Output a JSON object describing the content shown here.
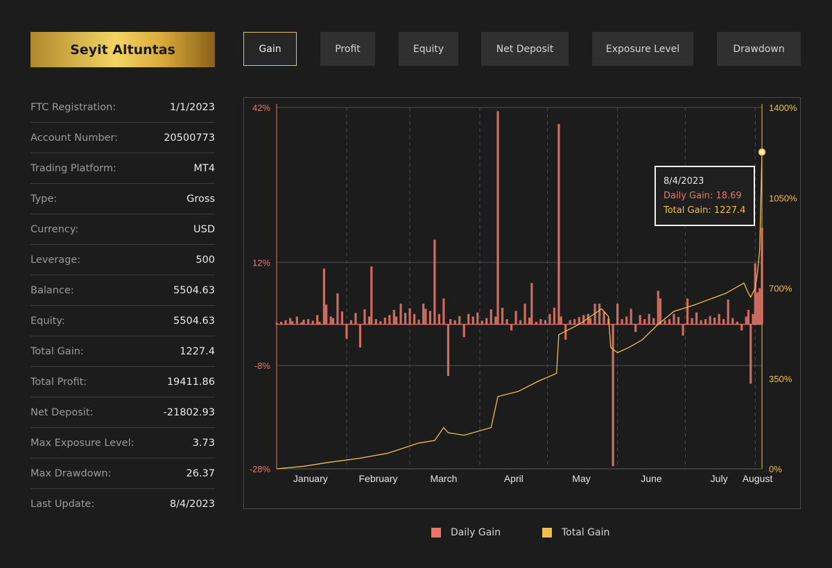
{
  "profile": {
    "name": "Seyit Altuntas"
  },
  "tabs": [
    {
      "label": "Gain",
      "active": true
    },
    {
      "label": "Profit",
      "active": false
    },
    {
      "label": "Equity",
      "active": false
    },
    {
      "label": "Net Deposit",
      "active": false
    },
    {
      "label": "Exposure Level",
      "active": false
    },
    {
      "label": "Drawdown",
      "active": false
    }
  ],
  "info": [
    {
      "label": "FTC Registration:",
      "value": "1/1/2023"
    },
    {
      "label": "Account Number:",
      "value": "20500773"
    },
    {
      "label": "Trading Platform:",
      "value": "MT4"
    },
    {
      "label": "Type:",
      "value": "Gross"
    },
    {
      "label": "Currency:",
      "value": "USD"
    },
    {
      "label": "Leverage:",
      "value": "500"
    },
    {
      "label": "Balance:",
      "value": "5504.63"
    },
    {
      "label": "Equity:",
      "value": "5504.63"
    },
    {
      "label": "Total Gain:",
      "value": "1227.4"
    },
    {
      "label": "Total Profit:",
      "value": "19411.86"
    },
    {
      "label": "Net Deposit:",
      "value": "-21802.93"
    },
    {
      "label": "Max Exposure Level:",
      "value": "3.73"
    },
    {
      "label": "Max Drawdown:",
      "value": "26.37"
    },
    {
      "label": "Last Update:",
      "value": "8/4/2023"
    }
  ],
  "colors": {
    "daily_gain": "#e8776a",
    "total_gain": "#f2bf4c",
    "accent_gold": "#e8c45a"
  },
  "tooltip": {
    "date": "8/4/2023",
    "daily_label": "Daily Gain:",
    "daily_value": "18.69",
    "total_label": "Total Gain:",
    "total_value": "1227.4"
  },
  "legend": [
    {
      "name": "Daily Gain"
    },
    {
      "name": "Total Gain"
    }
  ],
  "chart_data": {
    "type": "bar",
    "x_start": "2023-01-01",
    "x_end": "2023-08-04",
    "x_ticks": [
      "January",
      "February",
      "March",
      "April",
      "May",
      "June",
      "July",
      "August"
    ],
    "y_left": {
      "ticks": [
        "42%",
        "12%",
        "-8%",
        "-28%"
      ],
      "values": [
        42,
        12,
        -8,
        -28
      ],
      "min": -28,
      "max": 42
    },
    "y_right": {
      "ticks": [
        "1400%",
        "1050%",
        "700%",
        "350%",
        "0%"
      ],
      "values": [
        1400,
        1050,
        700,
        350,
        0
      ],
      "min": 0,
      "max": 1400
    },
    "grid": {
      "horizontal": true,
      "vertical_dashed": true
    },
    "legend_position": "bottom-center",
    "series": [
      {
        "name": "Daily Gain",
        "type": "bar",
        "axis": "left",
        "points": [
          [
            "2023-01-01",
            0.3
          ],
          [
            "2023-01-03",
            0.5
          ],
          [
            "2023-01-05",
            0.8
          ],
          [
            "2023-01-07",
            1.2
          ],
          [
            "2023-01-08",
            0.6
          ],
          [
            "2023-01-10",
            1.5
          ],
          [
            "2023-01-12",
            0.4
          ],
          [
            "2023-01-13",
            0.9
          ],
          [
            "2023-01-15",
            1.0
          ],
          [
            "2023-01-17",
            0.7
          ],
          [
            "2023-01-19",
            1.8
          ],
          [
            "2023-01-20",
            0.5
          ],
          [
            "2023-01-22",
            10.8
          ],
          [
            "2023-01-23",
            3.8
          ],
          [
            "2023-01-25",
            1.5
          ],
          [
            "2023-01-26",
            1.2
          ],
          [
            "2023-01-28",
            6.0
          ],
          [
            "2023-01-30",
            2.5
          ],
          [
            "2023-02-01",
            -2.8
          ],
          [
            "2023-02-03",
            0.8
          ],
          [
            "2023-02-05",
            2.2
          ],
          [
            "2023-02-07",
            -4.5
          ],
          [
            "2023-02-09",
            2.9
          ],
          [
            "2023-02-11",
            1.5
          ],
          [
            "2023-02-12",
            11.2
          ],
          [
            "2023-02-14",
            1.0
          ],
          [
            "2023-02-16",
            0.6
          ],
          [
            "2023-02-18",
            1.3
          ],
          [
            "2023-02-20",
            1.8
          ],
          [
            "2023-02-22",
            2.8
          ],
          [
            "2023-02-23",
            1.5
          ],
          [
            "2023-02-25",
            4.0
          ],
          [
            "2023-02-27",
            2.2
          ],
          [
            "2023-03-01",
            3.1
          ],
          [
            "2023-03-03",
            2.0
          ],
          [
            "2023-03-05",
            0.9
          ],
          [
            "2023-03-07",
            4.0
          ],
          [
            "2023-03-08",
            3.0
          ],
          [
            "2023-03-10",
            2.6
          ],
          [
            "2023-03-12",
            16.4
          ],
          [
            "2023-03-14",
            2.0
          ],
          [
            "2023-03-16",
            5.0
          ],
          [
            "2023-03-18",
            -10.0
          ],
          [
            "2023-03-19",
            1.0
          ],
          [
            "2023-03-21",
            0.8
          ],
          [
            "2023-03-23",
            1.6
          ],
          [
            "2023-03-25",
            -2.5
          ],
          [
            "2023-03-27",
            2.0
          ],
          [
            "2023-03-29",
            1.5
          ],
          [
            "2023-03-31",
            2.3
          ],
          [
            "2023-04-02",
            0.7
          ],
          [
            "2023-04-04",
            1.2
          ],
          [
            "2023-04-06",
            2.9
          ],
          [
            "2023-04-08",
            1.5
          ],
          [
            "2023-04-09",
            41.3
          ],
          [
            "2023-04-11",
            3.2
          ],
          [
            "2023-04-13",
            1.0
          ],
          [
            "2023-04-15",
            -1.2
          ],
          [
            "2023-04-17",
            2.6
          ],
          [
            "2023-04-19",
            0.8
          ],
          [
            "2023-04-21",
            4.0
          ],
          [
            "2023-04-23",
            1.3
          ],
          [
            "2023-04-24",
            8.0
          ],
          [
            "2023-04-26",
            0.5
          ],
          [
            "2023-04-28",
            1.0
          ],
          [
            "2023-04-30",
            0.8
          ],
          [
            "2023-05-02",
            2.0
          ],
          [
            "2023-05-04",
            3.2
          ],
          [
            "2023-05-06",
            38.8
          ],
          [
            "2023-05-07",
            1.5
          ],
          [
            "2023-05-09",
            -3.0
          ],
          [
            "2023-05-11",
            0.8
          ],
          [
            "2023-05-13",
            1.0
          ],
          [
            "2023-05-15",
            1.4
          ],
          [
            "2023-05-17",
            1.8
          ],
          [
            "2023-05-19",
            2.0
          ],
          [
            "2023-05-20",
            1.2
          ],
          [
            "2023-05-22",
            4.0
          ],
          [
            "2023-05-24",
            4.0
          ],
          [
            "2023-05-26",
            2.5
          ],
          [
            "2023-05-28",
            1.1
          ],
          [
            "2023-05-30",
            -27.5
          ],
          [
            "2023-06-01",
            4.0
          ],
          [
            "2023-06-03",
            1.0
          ],
          [
            "2023-06-05",
            1.5
          ],
          [
            "2023-06-07",
            3.0
          ],
          [
            "2023-06-09",
            -1.5
          ],
          [
            "2023-06-11",
            1.8
          ],
          [
            "2023-06-13",
            1.0
          ],
          [
            "2023-06-15",
            2.0
          ],
          [
            "2023-06-17",
            1.2
          ],
          [
            "2023-06-19",
            6.5
          ],
          [
            "2023-06-20",
            5.0
          ],
          [
            "2023-06-22",
            0.8
          ],
          [
            "2023-06-24",
            1.0
          ],
          [
            "2023-06-26",
            2.0
          ],
          [
            "2023-06-28",
            1.4
          ],
          [
            "2023-06-30",
            -2.2
          ],
          [
            "2023-07-02",
            5.0
          ],
          [
            "2023-07-04",
            1.2
          ],
          [
            "2023-07-06",
            2.3
          ],
          [
            "2023-07-08",
            0.8
          ],
          [
            "2023-07-10",
            1.0
          ],
          [
            "2023-07-12",
            1.6
          ],
          [
            "2023-07-14",
            1.3
          ],
          [
            "2023-07-16",
            2.0
          ],
          [
            "2023-07-18",
            1.0
          ],
          [
            "2023-07-20",
            4.8
          ],
          [
            "2023-07-22",
            1.2
          ],
          [
            "2023-07-24",
            0.5
          ],
          [
            "2023-07-26",
            -1.2
          ],
          [
            "2023-07-28",
            1.5
          ],
          [
            "2023-07-29",
            2.8
          ],
          [
            "2023-07-30",
            -11.5
          ],
          [
            "2023-07-31",
            2.0
          ],
          [
            "2023-08-01",
            11.8
          ],
          [
            "2023-08-02",
            6.2
          ],
          [
            "2023-08-03",
            7.0
          ],
          [
            "2023-08-04",
            18.69
          ]
        ]
      },
      {
        "name": "Total Gain",
        "type": "line",
        "axis": "right",
        "points": [
          [
            "2023-01-01",
            0
          ],
          [
            "2023-01-13",
            10
          ],
          [
            "2023-01-24",
            25
          ],
          [
            "2023-02-06",
            40
          ],
          [
            "2023-02-19",
            60
          ],
          [
            "2023-03-05",
            100
          ],
          [
            "2023-03-12",
            110
          ],
          [
            "2023-03-16",
            160
          ],
          [
            "2023-03-18",
            140
          ],
          [
            "2023-03-25",
            130
          ],
          [
            "2023-04-06",
            160
          ],
          [
            "2023-04-09",
            280
          ],
          [
            "2023-04-18",
            300
          ],
          [
            "2023-04-27",
            340
          ],
          [
            "2023-05-05",
            370
          ],
          [
            "2023-05-06",
            520
          ],
          [
            "2023-05-15",
            560
          ],
          [
            "2023-05-25",
            620
          ],
          [
            "2023-05-28",
            590
          ],
          [
            "2023-05-29",
            470
          ],
          [
            "2023-06-01",
            450
          ],
          [
            "2023-06-06",
            470
          ],
          [
            "2023-06-12",
            500
          ],
          [
            "2023-06-19",
            560
          ],
          [
            "2023-06-26",
            610
          ],
          [
            "2023-07-05",
            635
          ],
          [
            "2023-07-19",
            680
          ],
          [
            "2023-07-27",
            720
          ],
          [
            "2023-07-28",
            700
          ],
          [
            "2023-07-29",
            680
          ],
          [
            "2023-07-30",
            665
          ],
          [
            "2023-08-01",
            700
          ],
          [
            "2023-08-02",
            760
          ],
          [
            "2023-08-03",
            850
          ],
          [
            "2023-08-04",
            1227.4
          ]
        ]
      }
    ]
  }
}
